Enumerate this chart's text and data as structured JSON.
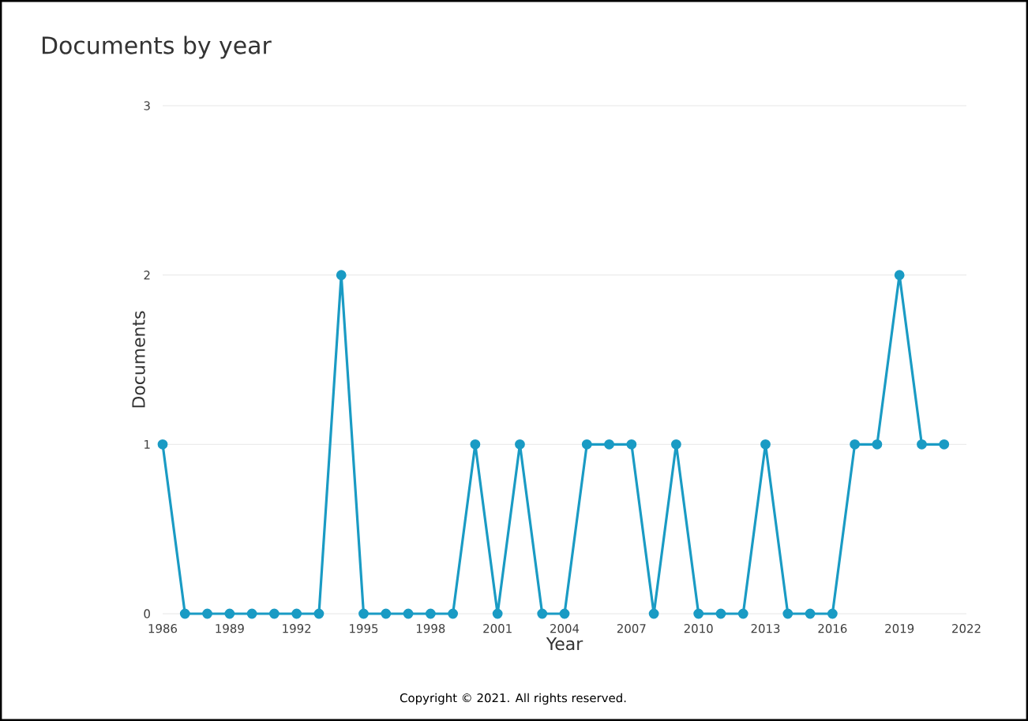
{
  "chart_data": {
    "type": "line",
    "title": "Documents by year",
    "xlabel": "Year",
    "ylabel": "Documents",
    "x": [
      1986,
      1987,
      1988,
      1989,
      1990,
      1991,
      1992,
      1993,
      1994,
      1995,
      1996,
      1997,
      1998,
      1999,
      2000,
      2001,
      2002,
      2003,
      2004,
      2005,
      2006,
      2007,
      2008,
      2009,
      2010,
      2011,
      2012,
      2013,
      2014,
      2015,
      2016,
      2017,
      2018,
      2019,
      2020,
      2021
    ],
    "series": [
      {
        "color": "#1a9bc4",
        "values": [
          1,
          0,
          0,
          0,
          0,
          0,
          0,
          0,
          2,
          0,
          0,
          0,
          0,
          0,
          1,
          0,
          1,
          0,
          0,
          1,
          1,
          1,
          0,
          1,
          0,
          0,
          0,
          1,
          0,
          0,
          0,
          1,
          1,
          2,
          1,
          1
        ]
      }
    ],
    "xlim": [
      1986,
      2022
    ],
    "xticks": [
      1986,
      1989,
      1992,
      1995,
      1998,
      2001,
      2004,
      2007,
      2010,
      2013,
      2016,
      2019,
      2022
    ],
    "ylim": [
      0,
      3
    ],
    "yticks": [
      0,
      1,
      2,
      3
    ],
    "grid": "y",
    "marker": "circle",
    "line_style": "solid",
    "annotations": [
      "Copyright © 2021. All rights reserved."
    ]
  }
}
